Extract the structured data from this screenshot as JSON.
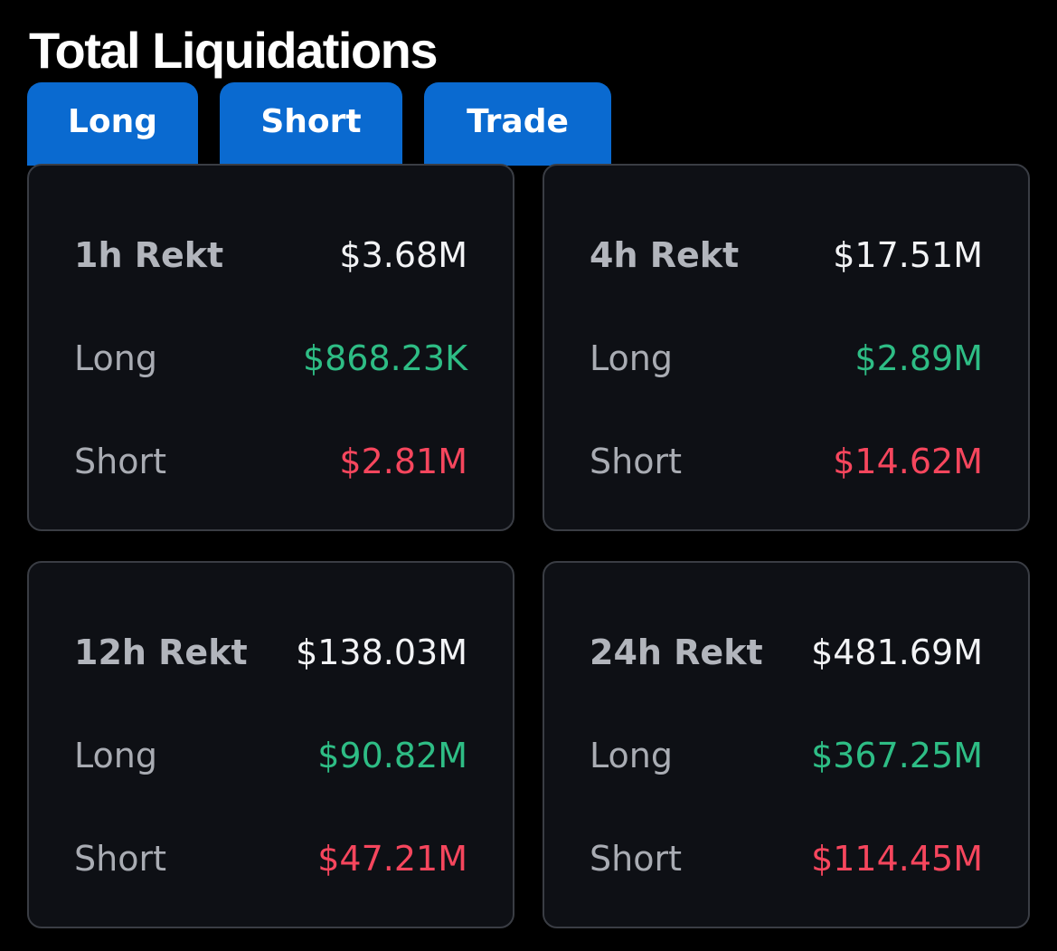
{
  "header": {
    "title": "Total Liquidations"
  },
  "tabs": [
    {
      "label": "Long"
    },
    {
      "label": "Short"
    },
    {
      "label": "Trade"
    }
  ],
  "labels": {
    "long": "Long",
    "short": "Short"
  },
  "cards": [
    {
      "period": "1h Rekt",
      "total": "$3.68M",
      "long": "$868.23K",
      "short": "$2.81M"
    },
    {
      "period": "4h Rekt",
      "total": "$17.51M",
      "long": "$2.89M",
      "short": "$14.62M"
    },
    {
      "period": "12h Rekt",
      "total": "$138.03M",
      "long": "$90.82M",
      "short": "$47.21M"
    },
    {
      "period": "24h Rekt",
      "total": "$481.69M",
      "long": "$367.25M",
      "short": "$114.45M"
    }
  ],
  "colors": {
    "background": "#000000",
    "tab_blue": "#0a6ad0",
    "card_bg": "#0e1015",
    "card_border": "#3a3d44",
    "long_green": "#2ebd85",
    "short_red": "#f6465d"
  }
}
